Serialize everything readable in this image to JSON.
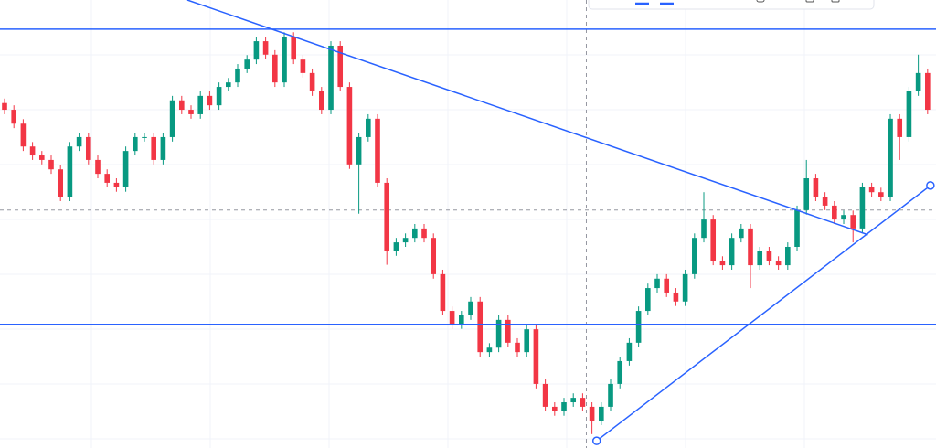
{
  "chart_data": {
    "type": "candlestick",
    "up_color": "#089981",
    "down_color": "#f23645",
    "line_color": "#2962ff",
    "xlim": [
      -0.49,
      99.9
    ],
    "ylim": [
      0,
      100
    ],
    "open": [
      77,
      75.5,
      72.4,
      67.3,
      65.3,
      64.3,
      62.2,
      56.1,
      67.3,
      69.4,
      64.3,
      61.2,
      59.2,
      58.2,
      66.3,
      69.4,
      69.4,
      64.3,
      69.4,
      77.6,
      75.5,
      74.5,
      78.6,
      76.5,
      80.6,
      81.6,
      84.7,
      86.7,
      90.8,
      87.8,
      81.6,
      91.8,
      86.7,
      83.7,
      79.6,
      75.5,
      89.8,
      80.6,
      63.3,
      69.4,
      73.5,
      59.2,
      43.9,
      45.9,
      46.9,
      49.0,
      46.9,
      38.8,
      30.6,
      27.6,
      29.6,
      32.7,
      21.4,
      22.4,
      28.6,
      23.5,
      21.4,
      26.5,
      14.3,
      9.2,
      8.2,
      10.2,
      11.2,
      9.2,
      6.1,
      9.2,
      14.3,
      19.4,
      23.5,
      30.6,
      35.7,
      37.8,
      34.7,
      32.7,
      38.8,
      46.9,
      51.0,
      41.8,
      40.8,
      46.9,
      49.0,
      40.8,
      43.9,
      41.8,
      40.8,
      44.9,
      53.1,
      60.2,
      56.1,
      54.1,
      51.0,
      52.0,
      49.0,
      58.2,
      57.1,
      56.1,
      73.5,
      69.4,
      79.6,
      83.7
    ],
    "close": [
      75.5,
      72.4,
      67.3,
      65.3,
      64.3,
      62.2,
      56.1,
      67.3,
      69.4,
      64.3,
      61.2,
      59.2,
      58.2,
      66.3,
      69.4,
      69.4,
      64.3,
      69.4,
      77.6,
      75.5,
      74.5,
      78.6,
      76.5,
      80.6,
      81.6,
      84.7,
      86.7,
      90.8,
      87.8,
      81.6,
      91.8,
      86.7,
      83.7,
      79.6,
      75.5,
      89.8,
      80.6,
      63.3,
      69.4,
      73.5,
      59.2,
      43.9,
      45.9,
      46.9,
      49.0,
      46.9,
      38.8,
      30.6,
      27.6,
      29.6,
      32.7,
      21.4,
      22.4,
      28.6,
      23.5,
      21.4,
      26.5,
      14.3,
      9.2,
      8.2,
      10.2,
      11.2,
      9.2,
      6.1,
      9.2,
      14.3,
      19.4,
      23.5,
      30.6,
      35.7,
      37.8,
      34.7,
      32.7,
      38.8,
      46.9,
      51.0,
      41.8,
      40.8,
      46.9,
      49.0,
      40.8,
      43.9,
      41.8,
      40.8,
      44.9,
      53.1,
      60.2,
      56.1,
      54.1,
      51.0,
      52.0,
      49.0,
      58.2,
      57.1,
      56.1,
      73.5,
      69.4,
      79.6,
      83.7,
      75.5
    ],
    "high": [
      78,
      76.5,
      73.4,
      68.3,
      66.3,
      65.3,
      63.2,
      68.3,
      70.4,
      70.4,
      65.3,
      62.2,
      60.2,
      67.3,
      70.4,
      70.4,
      70.4,
      70.4,
      78.6,
      78.6,
      76.5,
      79.6,
      79.6,
      81.6,
      82.6,
      85.7,
      87.7,
      91.8,
      91.8,
      88.8,
      92.8,
      92.8,
      87.7,
      84.7,
      80.6,
      90.8,
      90.8,
      81.6,
      70.4,
      74.5,
      74.5,
      60.2,
      46.9,
      47.9,
      50.0,
      50.0,
      47.9,
      39.8,
      31.6,
      30.6,
      33.7,
      33.7,
      23.4,
      29.6,
      29.6,
      24.5,
      27.5,
      27.5,
      15.3,
      10.2,
      11.2,
      12.2,
      12.2,
      10.2,
      10.2,
      15.3,
      20.4,
      24.5,
      31.6,
      36.7,
      38.8,
      38.8,
      35.7,
      39.8,
      47.9,
      57.1,
      52.0,
      42.8,
      47.9,
      50.0,
      50.0,
      44.9,
      44.9,
      42.8,
      45.9,
      54.1,
      64.3,
      61.2,
      57.1,
      55.1,
      53.0,
      53.0,
      59.2,
      59.2,
      58.1,
      74.5,
      74.5,
      80.6,
      87.8,
      84.7
    ],
    "low": [
      74.5,
      71.4,
      66.3,
      64.3,
      63.3,
      61.2,
      55.1,
      55.1,
      66.3,
      63.3,
      60.2,
      58.2,
      57.2,
      57.2,
      65.3,
      68.4,
      63.3,
      63.3,
      68.4,
      74.5,
      73.5,
      73.5,
      75.5,
      75.5,
      79.6,
      80.6,
      83.7,
      85.7,
      86.8,
      80.6,
      80.6,
      85.7,
      82.7,
      78.6,
      74.5,
      74.5,
      79.6,
      62.3,
      52.3,
      68.4,
      58.2,
      40.9,
      42.9,
      44.9,
      45.9,
      45.9,
      37.8,
      29.6,
      26.6,
      26.6,
      28.6,
      20.4,
      20.4,
      21.4,
      22.5,
      20.4,
      20.4,
      13.3,
      8.2,
      7.2,
      7.2,
      9.2,
      8.2,
      3.1,
      5.1,
      8.2,
      13.3,
      18.4,
      22.5,
      29.6,
      34.7,
      33.7,
      31.7,
      31.7,
      37.8,
      45.9,
      40.8,
      39.8,
      39.8,
      45.9,
      35.7,
      39.8,
      40.8,
      39.8,
      39.8,
      43.9,
      52.1,
      55.1,
      53.1,
      50.0,
      50.0,
      45.9,
      48.0,
      56.1,
      55.1,
      55.1,
      64.3,
      68.4,
      78.6,
      74.5
    ],
    "hlines": [
      93.5,
      27.6
    ],
    "trendlines": [
      {
        "x": [
          19.6,
          92.6
        ],
        "y": [
          100,
          47.6
        ]
      },
      {
        "x": [
          63.5,
          99.3
        ],
        "y": [
          1.6,
          58.6
        ]
      }
    ],
    "crosshair": {
      "x": 62.4,
      "y": 53.1
    }
  }
}
